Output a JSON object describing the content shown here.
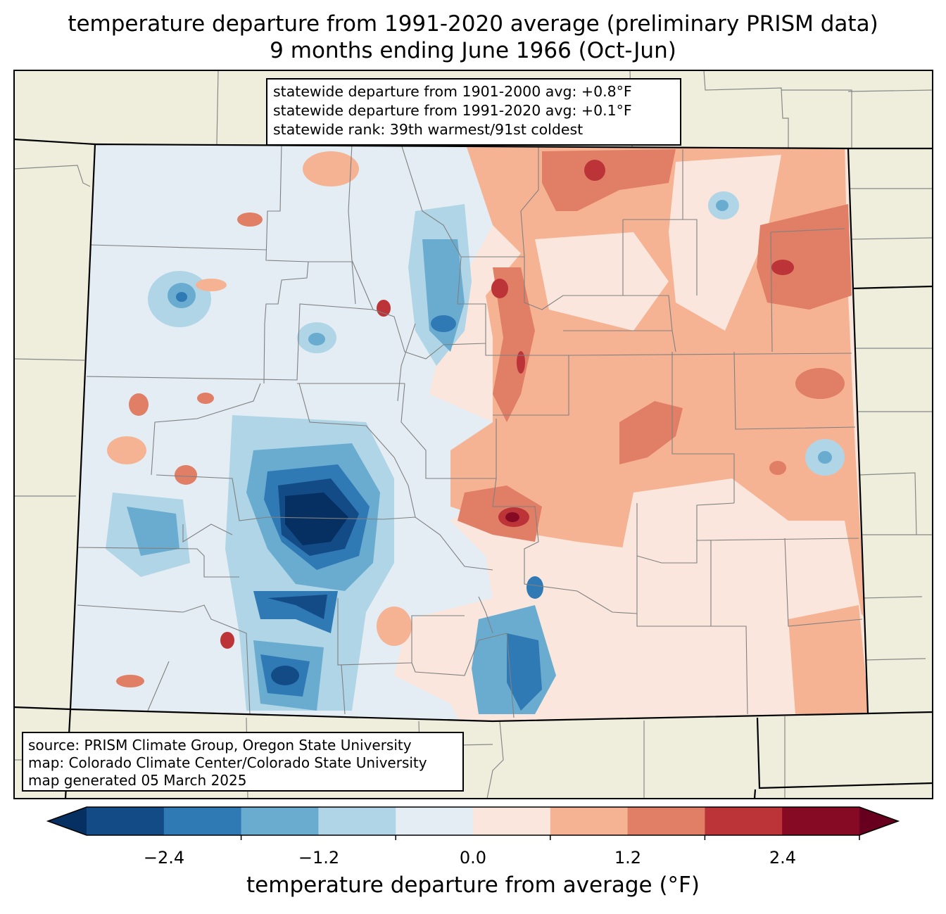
{
  "title": {
    "line1": "temperature departure from 1991-2020 average (preliminary PRISM data)",
    "line2": "9 months ending June 1966 (Oct-Jun)"
  },
  "stats": {
    "line1": "statewide departure from 1901-2000 avg: +0.8°F",
    "line2": "statewide departure from 1991-2020 avg: +0.1°F",
    "line3": "statewide rank: 39th warmest/91st coldest"
  },
  "source": {
    "line1": "source: PRISM Climate Group, Oregon State University",
    "line2": "map: Colorado Climate Center/Colorado State University",
    "line3": "map generated 05 March 2025"
  },
  "colorbar": {
    "label": "temperature departure from average (°F)",
    "ticks": [
      "−2.4",
      "−1.2",
      "0.0",
      "1.2",
      "2.4"
    ],
    "colors": [
      "#053061",
      "#134b87",
      "#2f79b5",
      "#6aacd0",
      "#b0d5e7",
      "#e3edf3",
      "#fae6dc",
      "#f6b394",
      "#e07e66",
      "#bc3438",
      "#870a24",
      "#67001f"
    ]
  },
  "map_colors": {
    "land_outside": "#efeedc",
    "border": "#000000",
    "county_line": "#888888"
  }
}
